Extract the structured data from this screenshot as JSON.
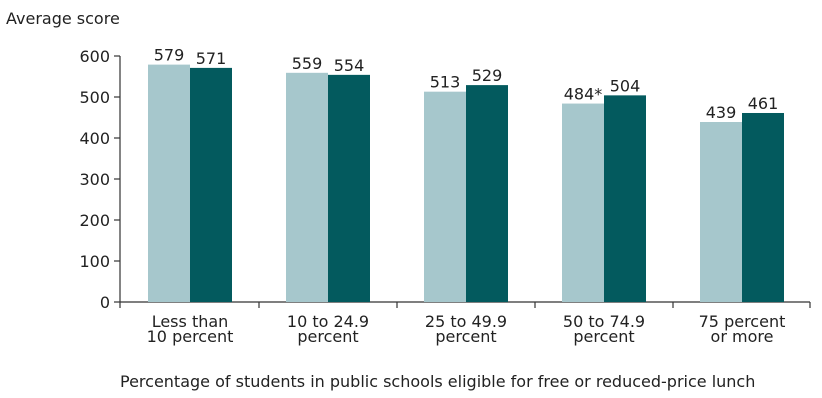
{
  "chart_data": {
    "type": "bar",
    "ylabel": "Average score",
    "xlabel": "Percentage of students in public schools eligible for free or reduced-price lunch",
    "ylim": [
      0,
      600
    ],
    "yticks": [
      "0",
      "100",
      "200",
      "300",
      "400",
      "500",
      "600"
    ],
    "categories": [
      [
        "Less than",
        "10 percent"
      ],
      [
        "10 to 24.9",
        "percent"
      ],
      [
        "25 to 49.9",
        "percent"
      ],
      [
        "50 to 74.9",
        "percent"
      ],
      [
        "75 percent",
        "or more"
      ]
    ],
    "series": [
      {
        "values": [
          579,
          559,
          513,
          484,
          439
        ],
        "labels": [
          "579",
          "559",
          "513",
          "484*",
          "439"
        ],
        "color": "#a6c7cc"
      },
      {
        "values": [
          571,
          554,
          529,
          504,
          461
        ],
        "labels": [
          "571",
          "554",
          "529",
          "504",
          "461"
        ],
        "color": "#035a5e"
      }
    ],
    "grid": false,
    "legend": "none"
  }
}
